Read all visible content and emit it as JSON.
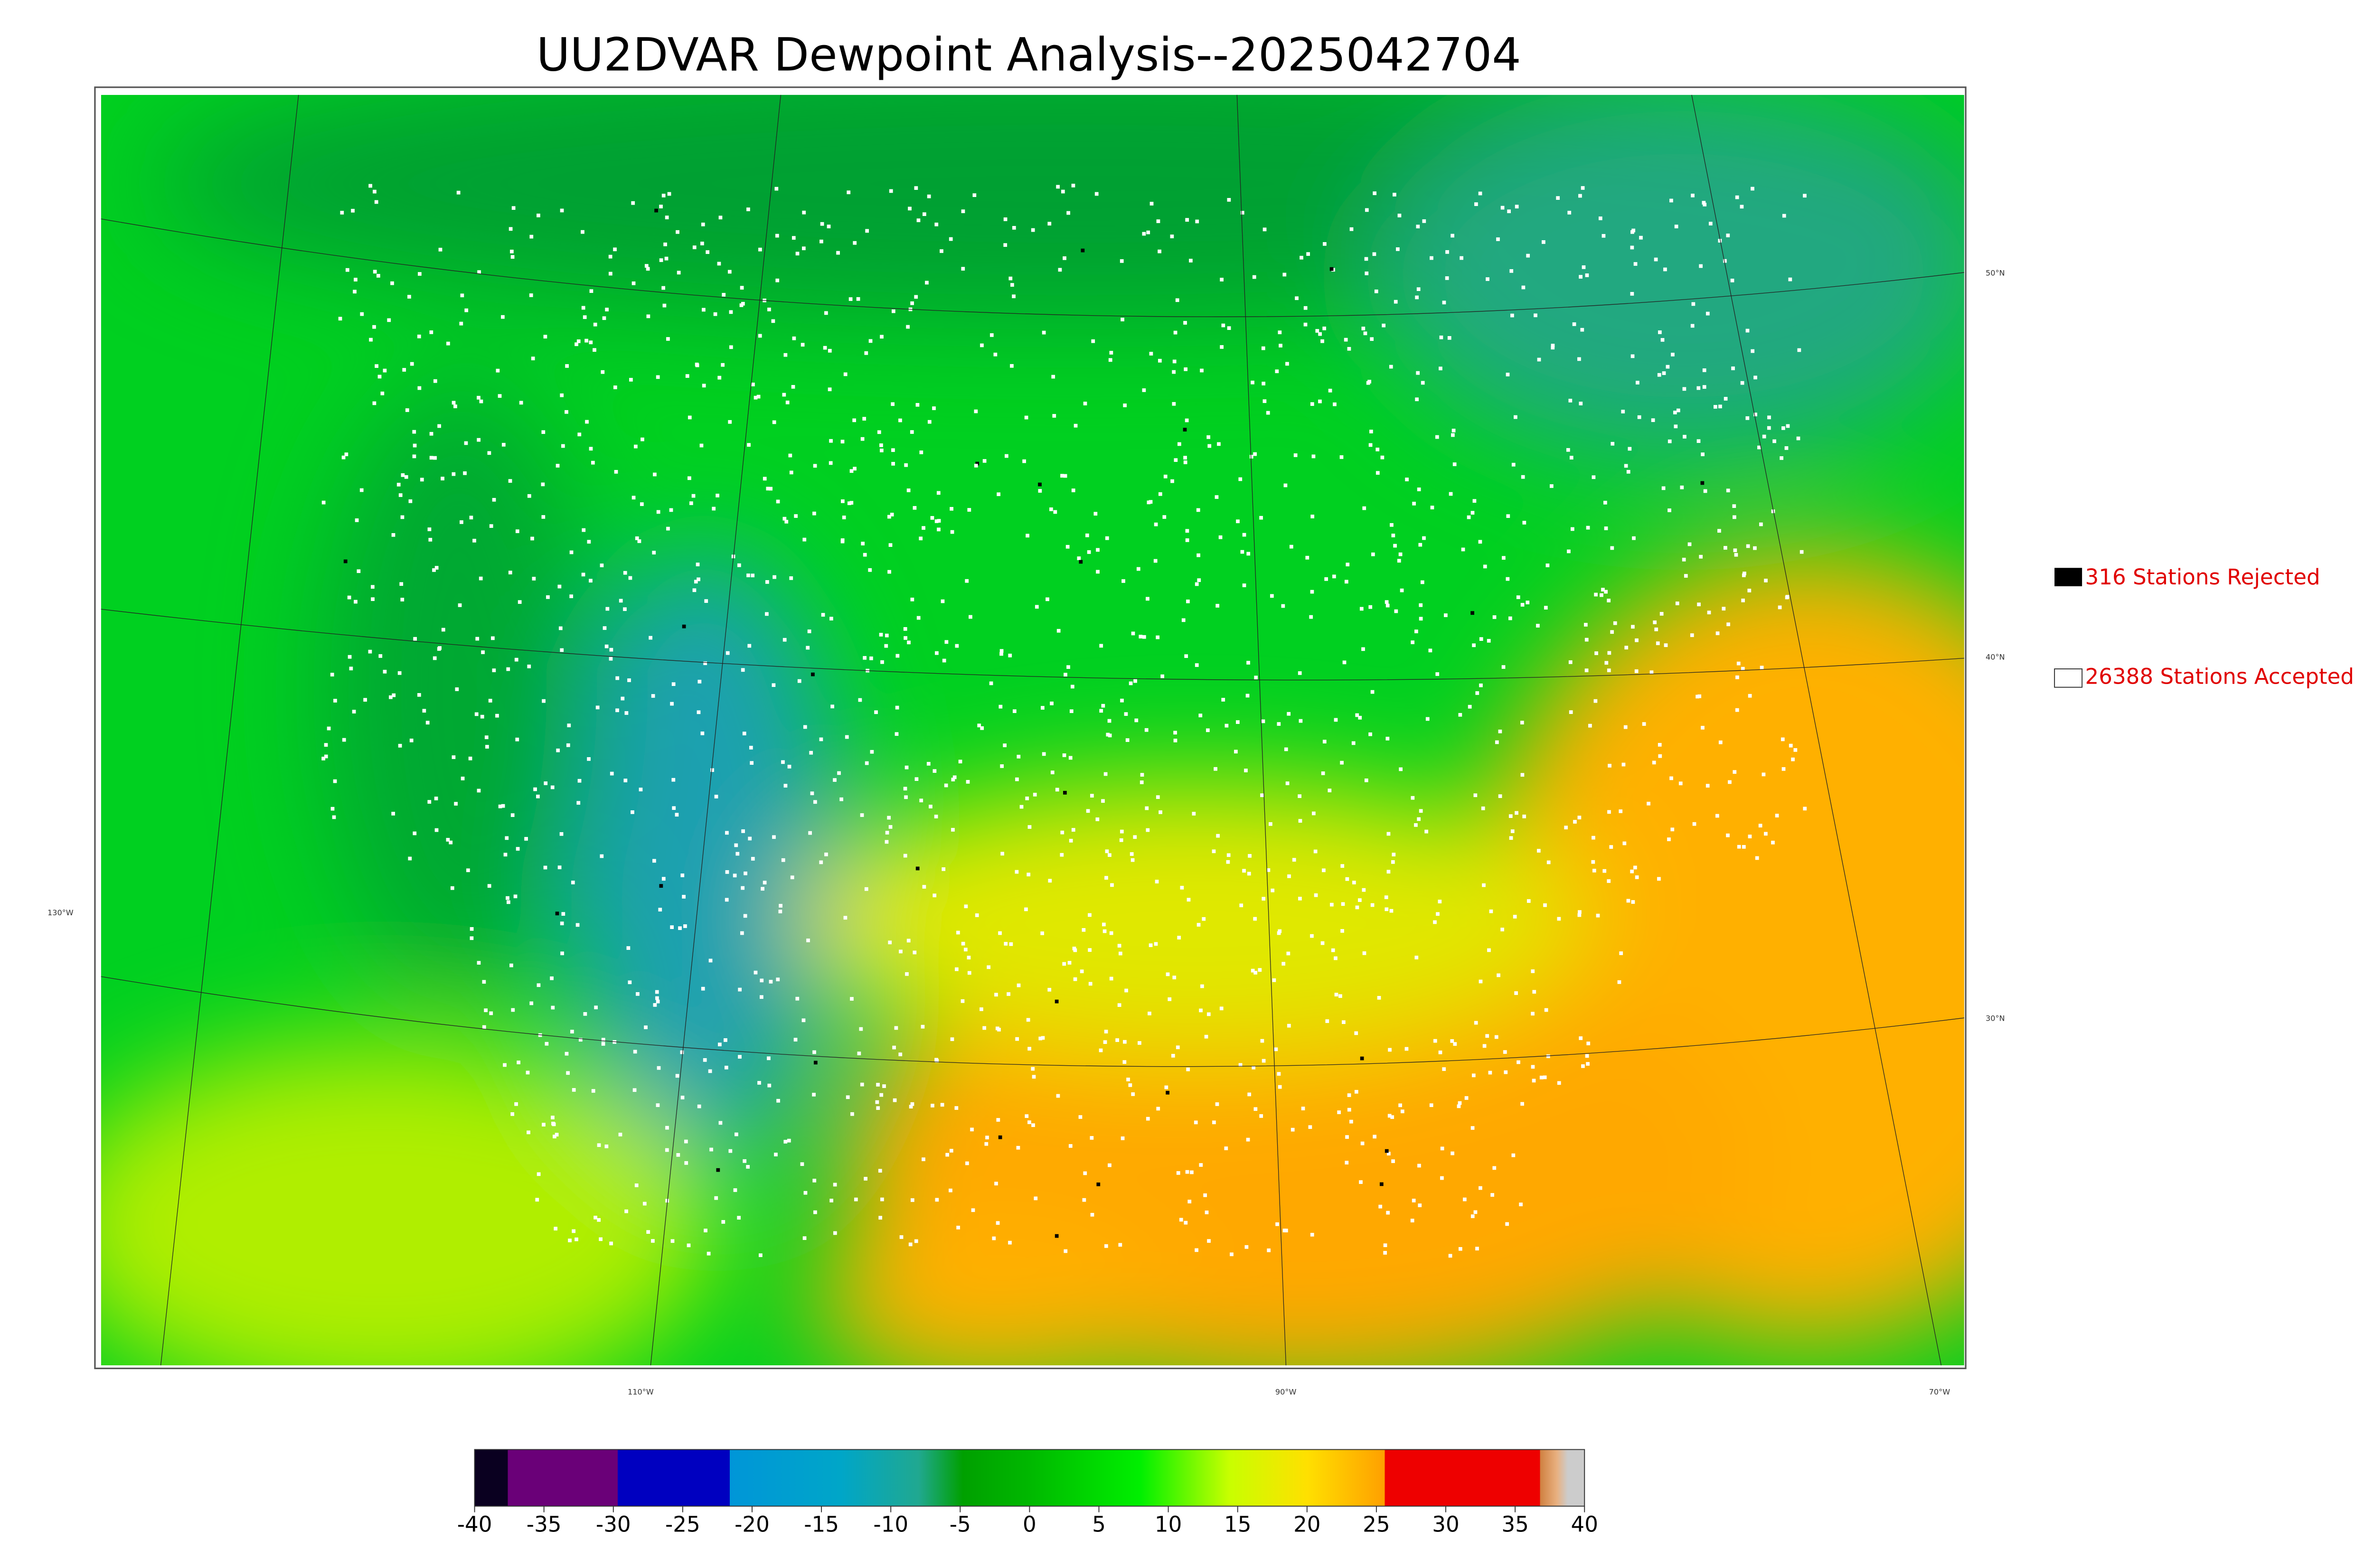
{
  "title": "UU2DVAR Dewpoint Analysis--2025042704",
  "legend": [
    {
      "label": "316 Stations Rejected"
    },
    {
      "label": "26388 Stations Accepted"
    }
  ],
  "latitude_labels": [
    "50°N",
    "40°N",
    "30°N"
  ],
  "longitude_labels": [
    "130°W",
    "110°W",
    "90°W",
    "70°W"
  ],
  "colorbar": {
    "lim": [
      -40,
      40
    ],
    "ticks": [
      -40,
      -35,
      -30,
      -25,
      -20,
      -15,
      -10,
      -5,
      0,
      5,
      10,
      15,
      20,
      25,
      30,
      35,
      40
    ]
  }
}
